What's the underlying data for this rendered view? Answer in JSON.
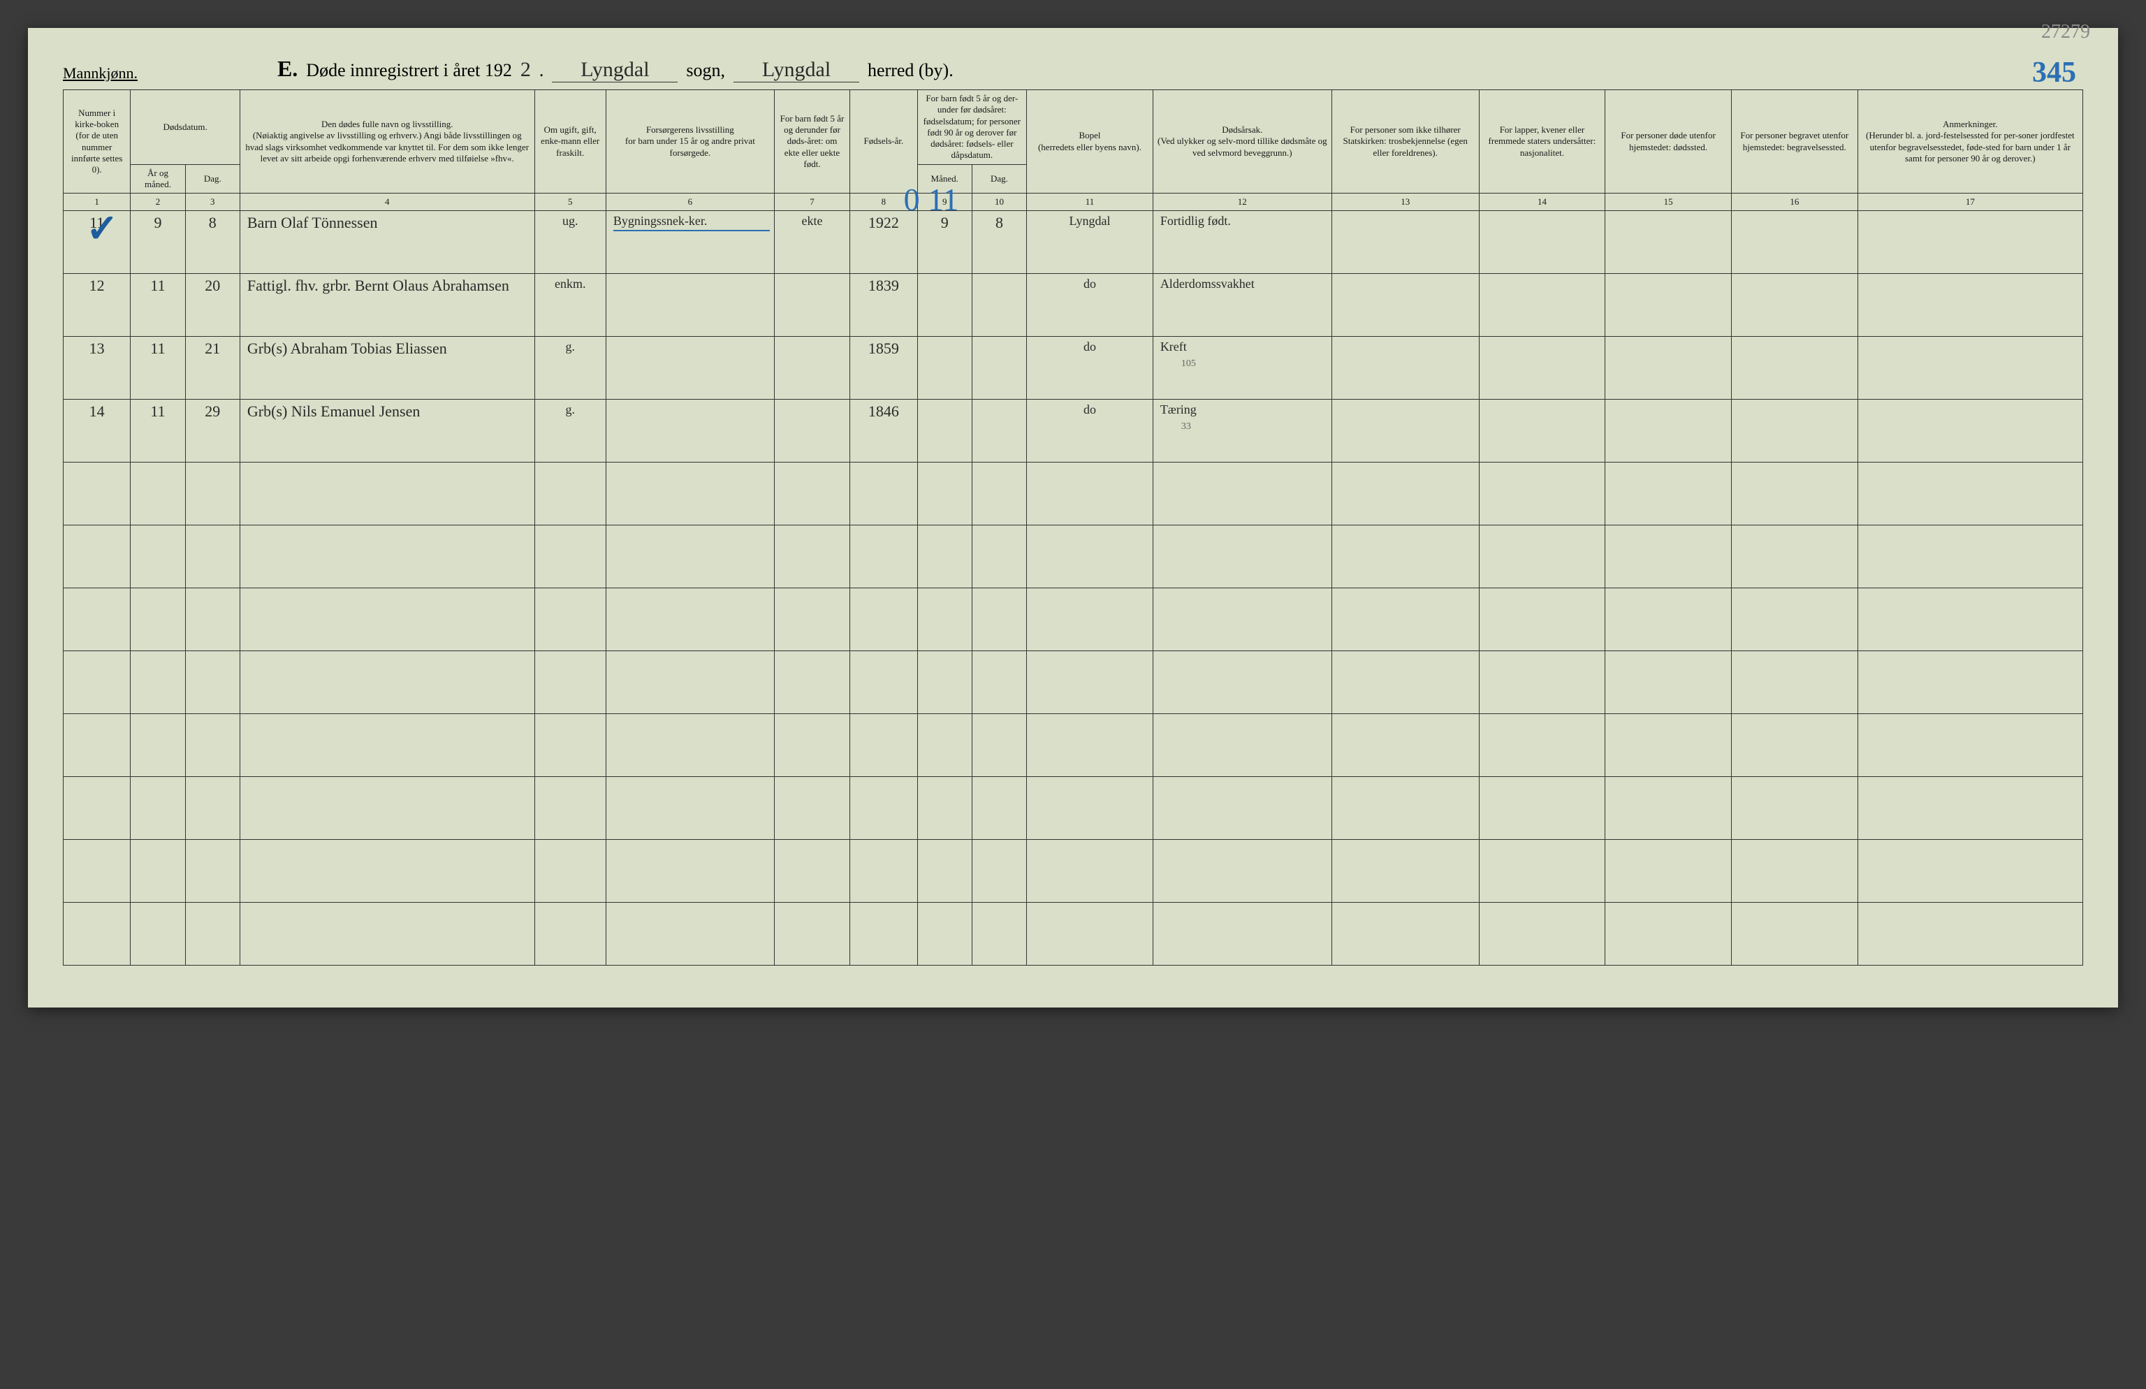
{
  "page": {
    "gender_label": "Mannkjønn.",
    "title_letter": "E.",
    "title_text_1": "Døde innregistrert i året 192",
    "year_last_digit": "2",
    "title_text_2": ".",
    "sogn_value": "Lyngdal",
    "sogn_label": "sogn,",
    "herred_value": "Lyngdal",
    "herred_label": "herred (by).",
    "faint_number": "27279",
    "blue_number": "345"
  },
  "headers": {
    "c1": "Nummer i kirke-boken (for de uten nummer innførte settes 0).",
    "c23_top": "Dødsdatum.",
    "c2": "År og måned.",
    "c3": "Dag.",
    "c4": "Den dødes fulle navn og livsstilling.\n(Nøiaktig angivelse av livsstilling og erhverv.) Angi både livsstillingen og hvad slags virksomhet vedkommende var knyttet til. For dem som ikke lenger levet av sitt arbeide opgi forhenværende erhverv med tilføielse »fhv«.",
    "c5": "Om ugift, gift, enke-mann eller fraskilt.",
    "c6": "Forsørgerens livsstilling\nfor barn under 15 år og andre privat forsørgede.",
    "c7": "For barn født 5 år og derunder før døds-året: om ekte eller uekte født.",
    "c8": "Fødsels-år.",
    "c910_top": "For barn født 5 år og der-under før dødsåret: fødselsdatum; for personer født 90 år og derover før dødsåret: fødsels- eller dåpsdatum.",
    "c9": "Måned.",
    "c10": "Dag.",
    "c11": "Bopel\n(herredets eller byens navn).",
    "c12": "Dødsårsak.\n(Ved ulykker og selv-mord tillike dødsmåte og ved selvmord beveggrunn.)",
    "c13": "For personer som ikke tilhører Statskirken: trosbekjennelse (egen eller foreldrenes).",
    "c14": "For lapper, kvener eller fremmede staters undersåtter: nasjonalitet.",
    "c15": "For personer døde utenfor hjemstedet: dødssted.",
    "c16": "For personer begravet utenfor hjemstedet: begravelsessted.",
    "c17": "Anmerkninger.\n(Herunder bl. a. jord-festelsessted for per-soner jordfestet utenfor begravelsesstedet, føde-sted for barn under 1 år samt for personer 90 år og derover.)"
  },
  "colnums": [
    "1",
    "2",
    "3",
    "4",
    "5",
    "6",
    "7",
    "8",
    "9",
    "10",
    "11",
    "12",
    "13",
    "14",
    "15",
    "16",
    "17"
  ],
  "rows": [
    {
      "check": true,
      "num": "11",
      "ym": "9",
      "day": "8",
      "name": "Barn Olaf Tönnessen",
      "status": "ug.",
      "provider": "Bygningssnek-ker.",
      "legit": "ekte",
      "birth_year": "1922",
      "b_month": "9",
      "b_day": "8",
      "bopel": "Lyngdal",
      "cause": "Fortidlig født.",
      "blue_overlay": "0 11",
      "underline_blue": true
    },
    {
      "num": "12",
      "ym": "11",
      "day": "20",
      "name": "Fattigl. fhv. grbr. Bernt Olaus Abrahamsen",
      "status": "enkm.",
      "birth_year": "1839",
      "bopel": "do",
      "cause": "Alderdomssvakhet"
    },
    {
      "num": "13",
      "ym": "11",
      "day": "21",
      "name": "Grb(s) Abraham Tobias Eliassen",
      "status": "g.",
      "birth_year": "1859",
      "bopel": "do",
      "cause": "Kreft",
      "cause_note": "105"
    },
    {
      "num": "14",
      "ym": "11",
      "day": "29",
      "name": "Grb(s) Nils Emanuel Jensen",
      "status": "g.",
      "birth_year": "1846",
      "bopel": "do",
      "cause": "Tæring",
      "cause_note": "33"
    }
  ],
  "empty_row_count": 8,
  "colors": {
    "paper": "#d9dfc8",
    "ink": "#1a1a1a",
    "blue_ink": "#2b6fb5",
    "faint": "#888"
  }
}
